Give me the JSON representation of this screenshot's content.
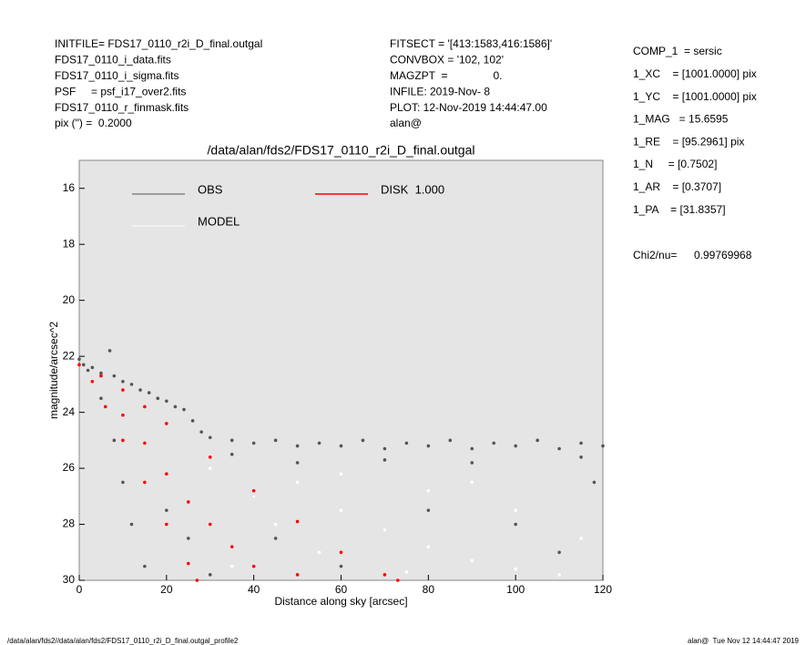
{
  "header": {
    "left": [
      "INITFILE= FDS17_0110_r2i_D_final.outgal",
      "FDS17_0110_i_data.fits",
      "FDS17_0110_i_sigma.fits",
      "PSF     = psf_i17_over2.fits",
      "FDS17_0110_r_finmask.fits",
      "pix (\") =  0.2000"
    ],
    "middle": [
      "FITSECT = '[413:1583,416:1586]'",
      "CONVBOX = '102, 102'",
      "MAGZPT  =               0.",
      "INFILE: 2019-Nov- 8",
      "PLOT: 12-Nov-2019 14:44:47.00",
      "alan@"
    ],
    "params": [
      "COMP_1  = sersic",
      "1_XC    = [1001.0000] pix",
      "1_YC    = [1001.0000] pix",
      "1_MAG   = 15.6595",
      "1_RE    = [95.2961] pix",
      "1_N     = [0.7502]",
      "1_AR    = [0.3707]",
      "1_PA    = [31.8357]"
    ],
    "chi2_label": "Chi2/nu=",
    "chi2_value": "0.99769968"
  },
  "footer": {
    "left": "/data/alan/fds2//data/alan/fds2/FDS17_0110_r2i_D_final.outgal_profile2",
    "right": "alan@  Tue Nov 12 14:44:47 2019"
  },
  "chart_data": {
    "type": "scatter",
    "title": "/data/alan/fds2/FDS17_0110_r2i_D_final.outgal",
    "x_label": "Distance along sky [arcsec]",
    "y_label": "magnitude/arcsec^2",
    "xlim": [
      0,
      120
    ],
    "xticks": [
      0,
      20,
      40,
      60,
      80,
      100,
      120
    ],
    "ylim": [
      30,
      15
    ],
    "yticks": [
      16,
      18,
      20,
      22,
      24,
      26,
      28,
      30
    ],
    "background": "#e5e5e5",
    "series": [
      {
        "name": "OBS",
        "color": "#555555",
        "x": [
          0,
          1,
          2,
          3,
          5,
          7,
          8,
          10,
          12,
          14,
          16,
          18,
          20,
          22,
          24,
          26,
          28,
          30,
          35,
          40,
          45,
          50,
          55,
          60,
          65,
          70,
          75,
          80,
          85,
          90,
          95,
          100,
          105,
          110,
          115,
          120,
          5,
          8,
          10,
          12,
          15,
          20,
          25,
          30,
          40,
          45,
          60,
          80,
          100,
          110,
          118,
          50,
          70,
          90,
          35,
          115
        ],
        "values": [
          22.1,
          22.3,
          22.5,
          22.4,
          22.6,
          21.8,
          22.7,
          22.9,
          23.0,
          23.2,
          23.3,
          23.5,
          23.6,
          23.8,
          23.9,
          24.3,
          24.7,
          24.9,
          25.0,
          25.1,
          25.0,
          25.2,
          25.1,
          25.2,
          25.0,
          25.3,
          25.1,
          25.2,
          25.0,
          25.3,
          25.1,
          25.2,
          25.0,
          25.3,
          25.1,
          25.2,
          23.5,
          25.0,
          26.5,
          28.0,
          29.5,
          27.5,
          28.5,
          29.8,
          27.0,
          28.5,
          29.5,
          27.5,
          28.0,
          29.0,
          26.5,
          25.8,
          25.7,
          25.8,
          25.5,
          25.6
        ]
      },
      {
        "name": "MODEL",
        "color": "#ffffff",
        "x": [
          30,
          40,
          50,
          60,
          70,
          80,
          90,
          100,
          110,
          60,
          80,
          100,
          115,
          45,
          55,
          75,
          90,
          35
        ],
        "values": [
          26.0,
          27.0,
          26.5,
          27.5,
          28.2,
          28.8,
          29.3,
          29.6,
          29.8,
          26.2,
          26.8,
          27.5,
          28.5,
          28.0,
          29.0,
          29.7,
          26.5,
          29.5
        ]
      },
      {
        "name": "DISK  1.000",
        "color": "#ff0000",
        "x": [
          0,
          5,
          10,
          15,
          20,
          30,
          40,
          50,
          60,
          70,
          73,
          3,
          6,
          10,
          15,
          20,
          25,
          27,
          10,
          20,
          30,
          40,
          15,
          25,
          35,
          50
        ],
        "values": [
          22.3,
          22.7,
          23.2,
          23.8,
          24.4,
          25.6,
          26.8,
          27.9,
          29.0,
          29.8,
          30,
          22.9,
          23.8,
          25.0,
          26.5,
          28.0,
          29.4,
          30,
          24.1,
          26.2,
          28.0,
          29.5,
          25.1,
          27.2,
          28.8,
          29.8
        ]
      }
    ]
  }
}
